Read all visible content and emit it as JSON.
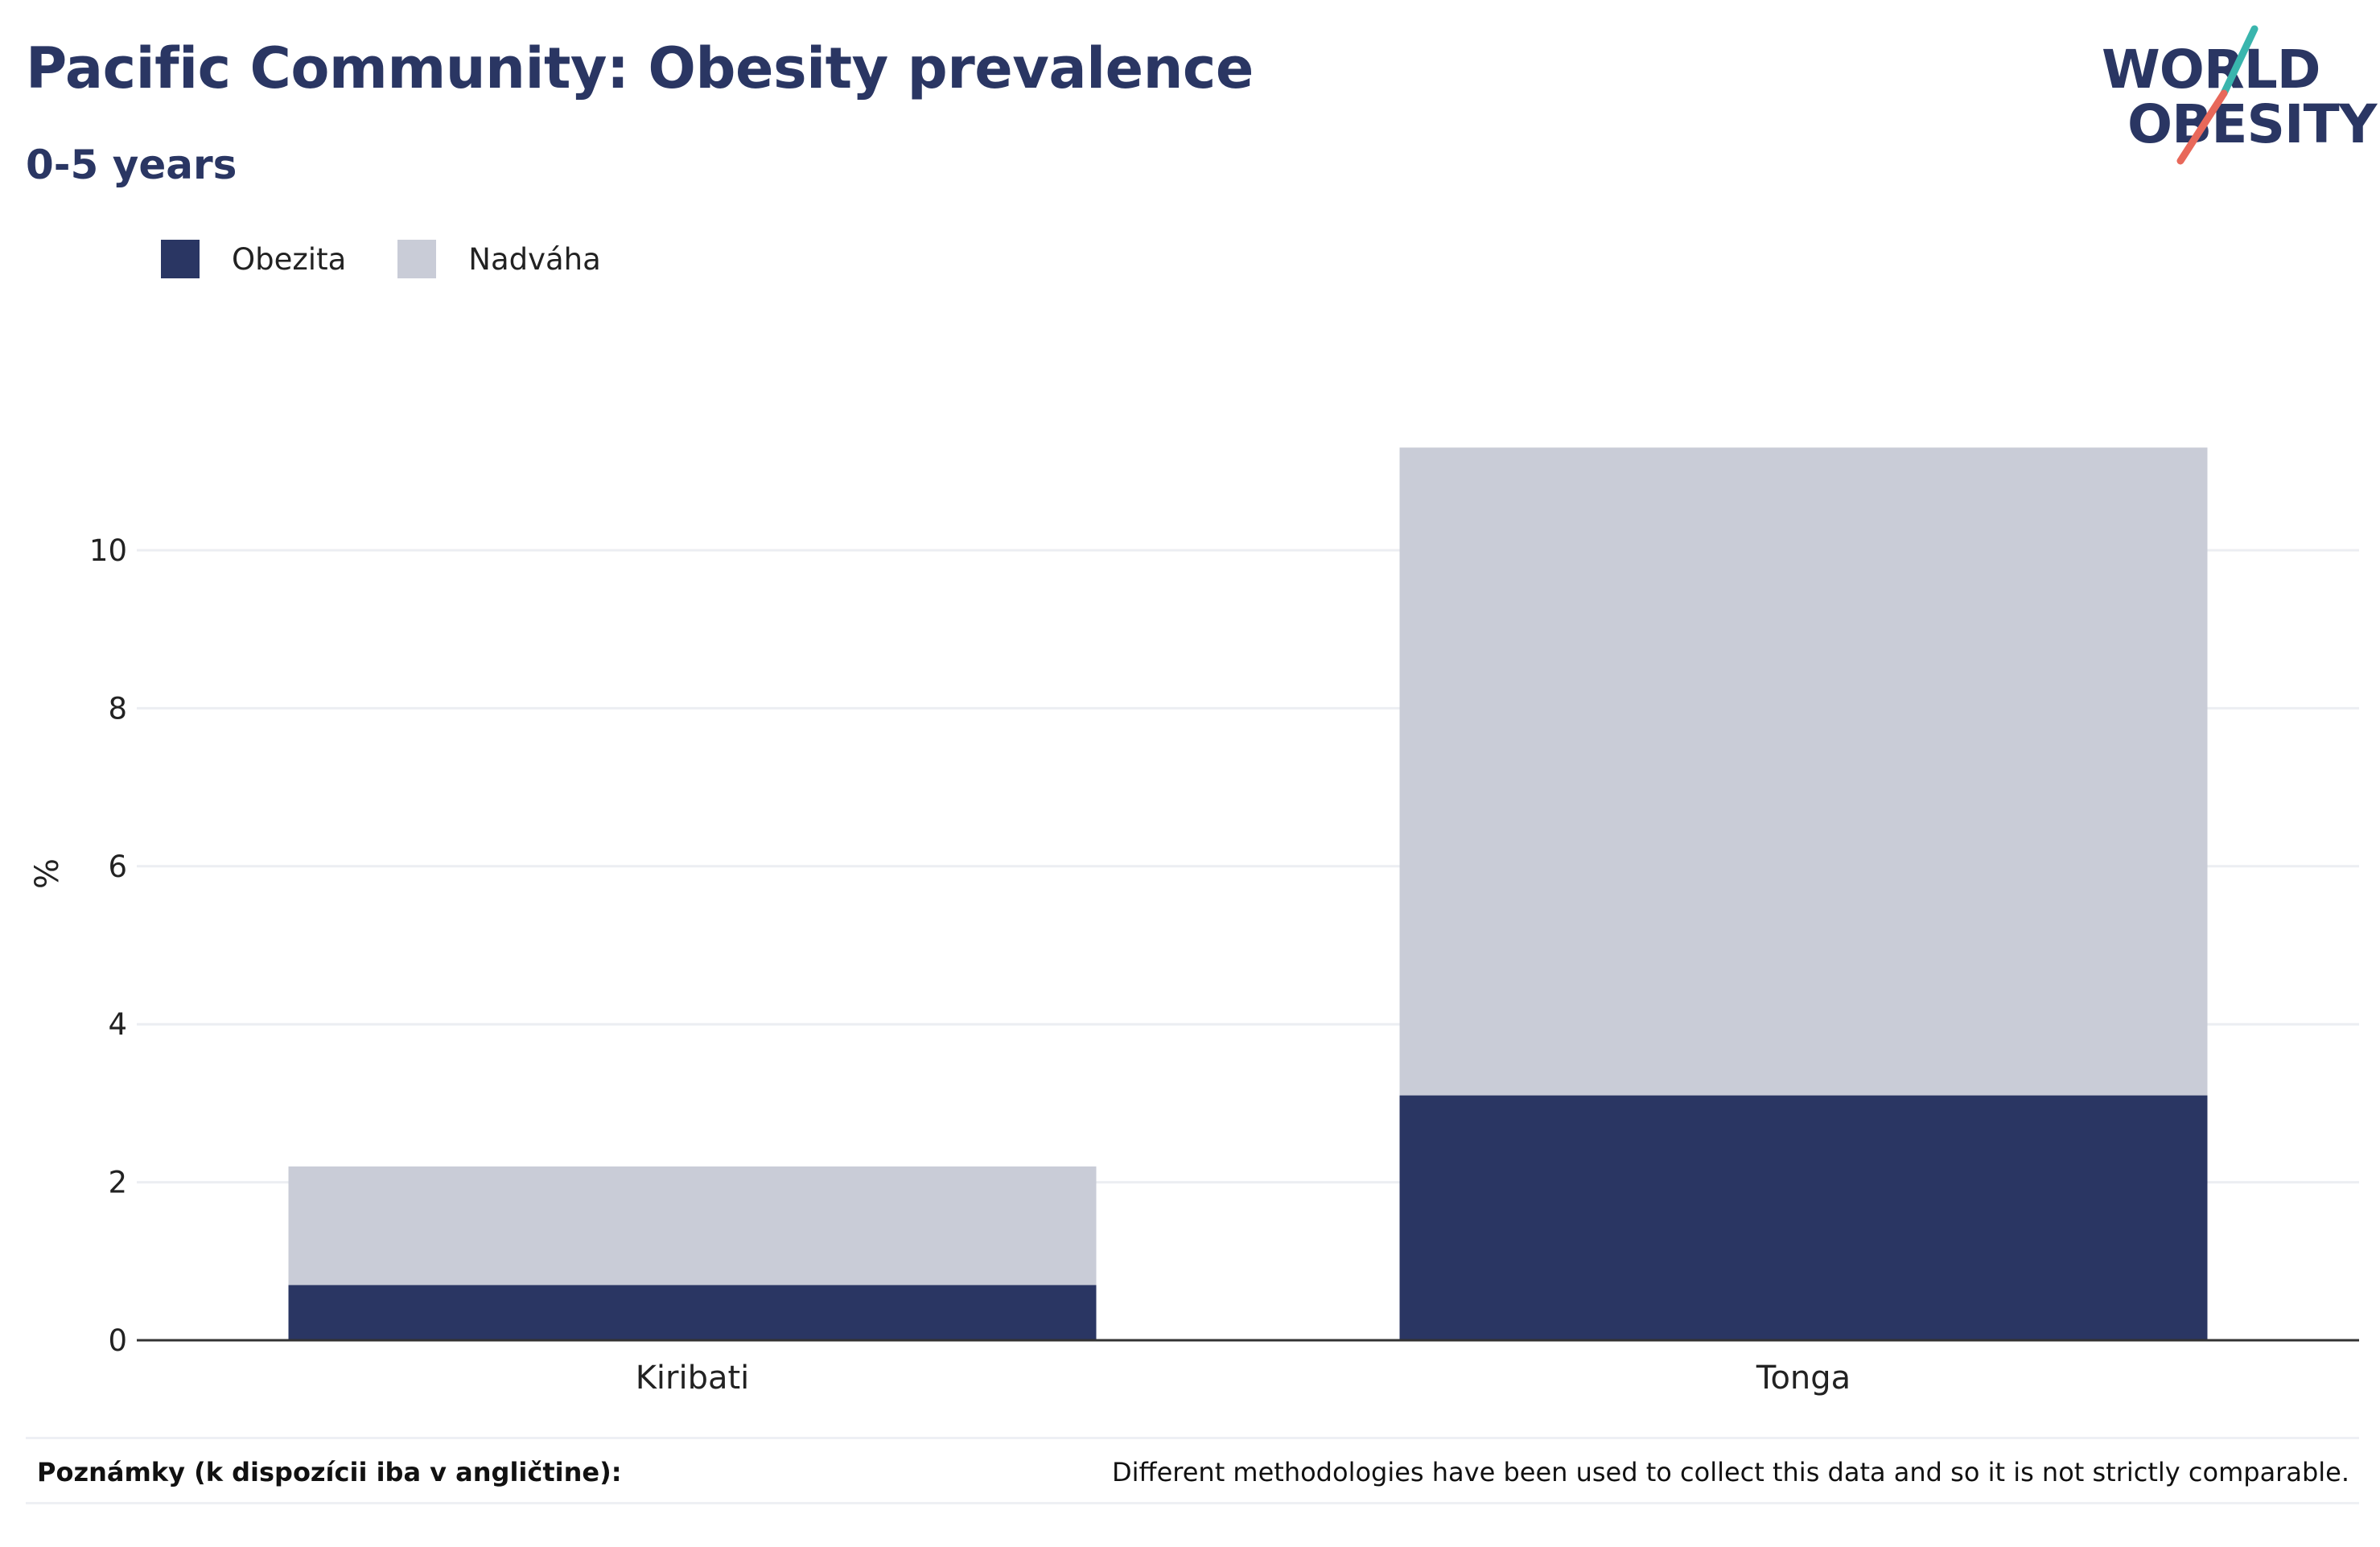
{
  "header": {
    "title": "Pacific Community: Obesity prevalence",
    "subtitle": "0-5 years"
  },
  "logo": {
    "line1": "WORLD",
    "line2": "OBESITY",
    "text_color": "#2a3663",
    "slash_colors": [
      "#39b5ad",
      "#e8685a"
    ]
  },
  "legend": {
    "items": [
      {
        "label": "Obezita",
        "color": "#2a3663"
      },
      {
        "label": "Nadváha",
        "color": "#c9ccd7"
      }
    ]
  },
  "chart_data": {
    "type": "bar",
    "stacked": true,
    "title": "Pacific Community: Obesity prevalence",
    "subtitle": "0-5 years",
    "xlabel": "",
    "ylabel": "%",
    "categories": [
      "Kiribati",
      "Tonga"
    ],
    "series": [
      {
        "name": "Obezita",
        "color": "#2a3663",
        "values": [
          0.7,
          3.1
        ]
      },
      {
        "name": "Nadváha",
        "color": "#c9ccd7",
        "values": [
          1.5,
          8.2
        ]
      }
    ],
    "ylim": [
      0,
      11.5
    ],
    "yticks": [
      0,
      2,
      4,
      6,
      8,
      10
    ],
    "grid": true,
    "legend_position": "top-left"
  },
  "notes": {
    "label": "Poznámky (k dispozícii iba v angličtine):",
    "text": "Different methodologies have been used to collect this data and so it is not strictly comparable."
  }
}
